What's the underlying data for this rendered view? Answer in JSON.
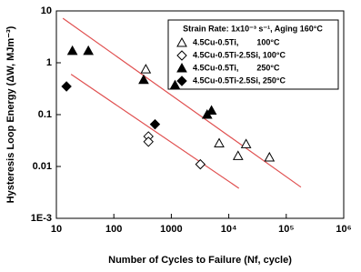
{
  "chart_data": {
    "type": "scatter",
    "x_label": "Number of Cycles to Failure (Nf, cycle)",
    "y_label": "Hysteresis Loop Energy (ΔW, MJm⁻³)",
    "legend_title": "Strain Rate: 1x10⁻³ s⁻¹, Aging 160°C",
    "log_x": true,
    "log_y": true,
    "xlim": [
      10,
      1000000
    ],
    "ylim": [
      0.001,
      10
    ],
    "xticks": [
      10,
      100,
      1000,
      {
        "value": 10000,
        "label": "10⁴"
      },
      {
        "value": 100000,
        "label": "10⁵"
      },
      {
        "value": 1000000,
        "label": "10⁶"
      }
    ],
    "yticks": [
      {
        "value": 0.001,
        "label": "1E-3"
      },
      0.01,
      0.1,
      1,
      10
    ],
    "series": [
      {
        "name": "4.5Cu-0.5Ti,        100°C",
        "marker": "triangle-open",
        "color": "#000000",
        "x": [
          360,
          6800,
          20000,
          14500,
          51000
        ],
        "values": [
          0.75,
          0.028,
          0.027,
          0.016,
          0.015
        ]
      },
      {
        "name": "4.5Cu-0.5Ti-2.5Si, 100°C",
        "marker": "diamond-open",
        "color": "#000000",
        "x": [
          400,
          400,
          3200
        ],
        "values": [
          0.038,
          0.03,
          0.011
        ]
      },
      {
        "name": "4.5Cu-0.5Ti,        250°C",
        "marker": "triangle-filled",
        "color": "#000000",
        "x": [
          19,
          36,
          330,
          1160,
          4200,
          5000
        ],
        "values": [
          1.7,
          1.7,
          0.47,
          0.37,
          0.1,
          0.12
        ]
      },
      {
        "name": "4.5Cu-0.5Ti-2.5Si, 250°C",
        "marker": "diamond-filled",
        "color": "#000000",
        "x": [
          15,
          520
        ],
        "values": [
          0.35,
          0.065
        ]
      }
    ],
    "fit_lines": [
      {
        "color": "#e05050",
        "x": [
          13,
          180000
        ],
        "values": [
          7.2,
          0.004
        ]
      },
      {
        "color": "#e05050",
        "x": [
          18,
          15000
        ],
        "values": [
          0.6,
          0.0038
        ]
      }
    ]
  }
}
